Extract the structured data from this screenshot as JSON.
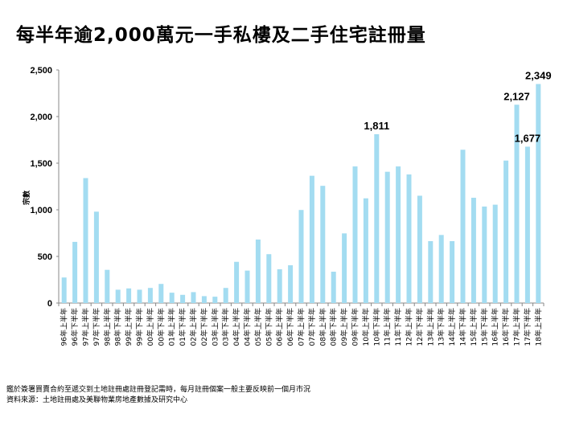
{
  "chart_data": {
    "type": "bar",
    "title": "每半年逾2,000萬元一手私樓及二手住宅註冊量",
    "xlabel": "",
    "ylabel": "宗數",
    "ylim": [
      0,
      2500
    ],
    "yticks": [
      0,
      500,
      1000,
      1500,
      2000,
      2500
    ],
    "ytick_labels": [
      "0",
      "500",
      "1,000",
      "1,500",
      "2,000",
      "2,500"
    ],
    "grid": false,
    "bar_color": "#a3dcf1",
    "categories": [
      "96年上半年",
      "96年下半年",
      "97年上半年",
      "97年下半年",
      "98年上半年",
      "98年下半年",
      "99年上半年",
      "99年下半年",
      "00年上半年",
      "00年下半年",
      "01年上半年",
      "01年下半年",
      "02年上半年",
      "02年下半年",
      "03年上半年",
      "03年下半年",
      "04年上半年",
      "04年下半年",
      "05年上半年",
      "05年下半年",
      "06年上半年",
      "06年下半年",
      "07年上半年",
      "07年下半年",
      "08年上半年",
      "08年下半年",
      "09年上半年",
      "09年下半年",
      "10年上半年",
      "10年下半年",
      "11年上半年",
      "11年下半年",
      "12年上半年",
      "12年下半年",
      "13年上半年",
      "13年下半年",
      "14年上半年",
      "14年下半年",
      "15年上半年",
      "15年下半年",
      "16年上半年",
      "16年下半年",
      "17年上半年",
      "17年下半年",
      "18年上半年"
    ],
    "values": [
      274,
      656,
      1340,
      980,
      356,
      143,
      157,
      143,
      162,
      205,
      111,
      88,
      117,
      74,
      68,
      162,
      442,
      348,
      681,
      524,
      362,
      405,
      998,
      1365,
      1257,
      336,
      747,
      1465,
      1123,
      1811,
      1408,
      1465,
      1379,
      1151,
      664,
      730,
      664,
      1644,
      1129,
      1035,
      1055,
      1528,
      2127,
      1677,
      2349
    ],
    "data_labels": [
      {
        "category": "10年下半年",
        "text": "1,811"
      },
      {
        "category": "17年上半年",
        "text": "2,127"
      },
      {
        "category": "17年下半年",
        "text": "1,677"
      },
      {
        "category": "18年上半年",
        "text": "2,349"
      }
    ]
  },
  "footnotes": [
    "鑑於簽署買賣合約至遞交到土地註冊處註冊登記需時，每月註冊個案一般主要反映前一個月市況",
    "資料來源：土地註冊處及美聯物業房地產數據及研究中心"
  ]
}
